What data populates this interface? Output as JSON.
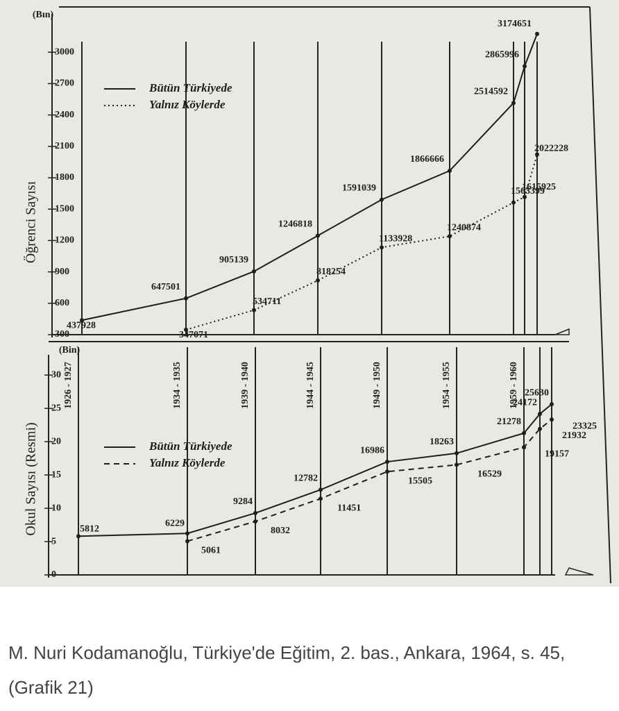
{
  "chart_data": [
    {
      "type": "line",
      "y_unit": "(Bın)",
      "ylabel": "Öğrenci Sayısı",
      "categories": [
        null,
        null,
        null,
        null,
        null,
        null,
        null,
        null,
        null
      ],
      "series": [
        {
          "name": "Bütün Türkiyede",
          "color": "#1e1e1e",
          "style": "solid",
          "values": [
            437.928,
            647.501,
            905.139,
            1246.818,
            1591.039,
            1866.666,
            2514.592,
            2865.996,
            3174.651
          ],
          "value_labels": [
            "437928",
            "647501",
            "905139",
            "1246818",
            "1591039",
            "1866666",
            "2514592",
            "2865996",
            "3174651"
          ]
        },
        {
          "name": "Yalnız Köylerde",
          "color": "#1e1e1e",
          "style": "dotted",
          "values": [
            null,
            347.071,
            534.711,
            818.254,
            1133.928,
            1240.874,
            1563.399,
            1615.925,
            2022.228
          ],
          "value_labels": [
            null,
            "347071",
            "534711",
            "818254",
            "1133928",
            "1240874",
            "1563399",
            "1615925",
            "2022228"
          ]
        }
      ],
      "ylim": [
        300,
        3300
      ],
      "yticks": [
        300,
        600,
        900,
        1200,
        1500,
        1800,
        2100,
        2400,
        2700,
        3000
      ]
    },
    {
      "type": "line",
      "y_unit": "(Bin)",
      "ylabel": "Okul Sayısı (Resmi)",
      "categories": [
        "1926 - 1927",
        "1934 - 1935",
        "1939 - 1940",
        "1944 - 1945",
        "1949 - 1950",
        "1954 - 1955",
        "1959 - 1960",
        null,
        null
      ],
      "series": [
        {
          "name": "Bütün Türkiyede",
          "color": "#1e1e1e",
          "style": "solid",
          "values": [
            5.812,
            6.229,
            9.284,
            12.782,
            16.986,
            18.263,
            21.278,
            24.172,
            25.63
          ],
          "value_labels": [
            "5812",
            "6229",
            "9284",
            "12782",
            "16986",
            "18263",
            "21278",
            "24172",
            "25630"
          ]
        },
        {
          "name": "Yalnız Köylerde",
          "color": "#1e1e1e",
          "style": "dashed",
          "values": [
            null,
            5.061,
            8.032,
            11.451,
            15.505,
            16.529,
            19.157,
            21.932,
            23.325
          ],
          "value_labels": [
            null,
            "5061",
            "8032",
            "11451",
            "15505",
            "16529",
            "19157",
            "21932",
            "23325"
          ]
        }
      ],
      "ylim": [
        0,
        32
      ],
      "yticks": [
        0,
        5,
        10,
        15,
        20,
        25,
        30
      ]
    }
  ],
  "caption": "M. Nuri Kodamanoğlu, Türkiye'de Eğitim, 2. bas., Ankara, 1964, s. 45, (Grafik 21)"
}
